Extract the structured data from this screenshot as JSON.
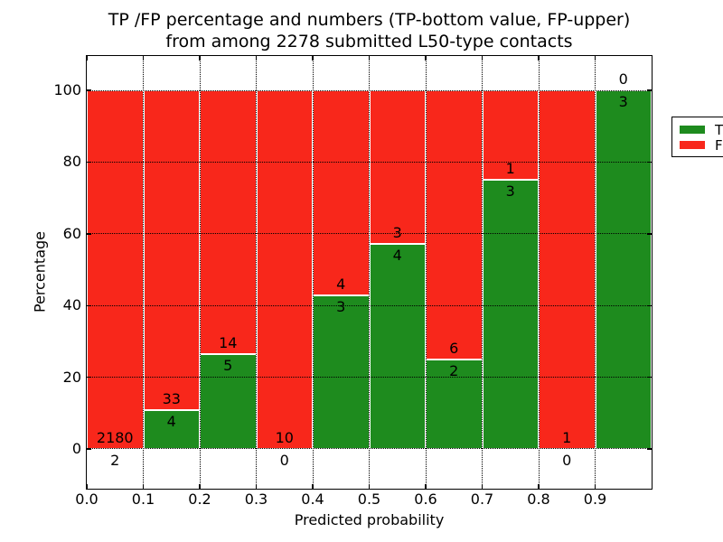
{
  "figure": {
    "title_line1": "TP /FP percentage and numbers (TP-bottom value, FP-upper)",
    "title_line2": "from among 2278 submitted L50-type contacts",
    "background": "#ffffff"
  },
  "legend": {
    "items": [
      {
        "label": "TP",
        "color": "#1e8b1e"
      },
      {
        "label": "FP",
        "color": "#f8271b"
      }
    ]
  },
  "chart_data": {
    "type": "bar",
    "stacked": true,
    "title": "TP /FP percentage and numbers (TP-bottom value, FP-upper) from among 2278 submitted L50-type contacts",
    "xlabel": "Predicted probability",
    "ylabel": "Percentage",
    "xlim": [
      0.0,
      1.0
    ],
    "ylim": [
      -11.1,
      109.6
    ],
    "grid": true,
    "grid_style": "dotted",
    "legend_position": "upper right",
    "total_contacts": 2278,
    "series": [
      {
        "name": "TP",
        "color": "#1e8b1e",
        "position": "bottom"
      },
      {
        "name": "FP",
        "color": "#f8271b",
        "position": "top"
      }
    ],
    "xticks": [
      "0.0",
      "0.1",
      "0.2",
      "0.3",
      "0.4",
      "0.5",
      "0.6",
      "0.7",
      "0.8",
      "0.9"
    ],
    "yticks": [
      0,
      20,
      40,
      60,
      80,
      100
    ],
    "bins": [
      {
        "x_range": [
          0.0,
          0.1
        ],
        "tp": 2,
        "fp": 2180,
        "tp_pct": 0.09
      },
      {
        "x_range": [
          0.1,
          0.2
        ],
        "tp": 4,
        "fp": 33,
        "tp_pct": 10.81
      },
      {
        "x_range": [
          0.2,
          0.3
        ],
        "tp": 5,
        "fp": 14,
        "tp_pct": 26.32
      },
      {
        "x_range": [
          0.3,
          0.4
        ],
        "tp": 0,
        "fp": 10,
        "tp_pct": 0
      },
      {
        "x_range": [
          0.4,
          0.5
        ],
        "tp": 3,
        "fp": 4,
        "tp_pct": 42.86
      },
      {
        "x_range": [
          0.5,
          0.6
        ],
        "tp": 4,
        "fp": 3,
        "tp_pct": 57.14
      },
      {
        "x_range": [
          0.6,
          0.7
        ],
        "tp": 2,
        "fp": 6,
        "tp_pct": 25
      },
      {
        "x_range": [
          0.7,
          0.8
        ],
        "tp": 3,
        "fp": 1,
        "tp_pct": 75
      },
      {
        "x_range": [
          0.8,
          0.9
        ],
        "tp": 0,
        "fp": 1,
        "tp_pct": 0
      },
      {
        "x_range": [
          0.9,
          1.0
        ],
        "tp": 3,
        "fp": 0,
        "tp_pct": 100
      }
    ]
  }
}
